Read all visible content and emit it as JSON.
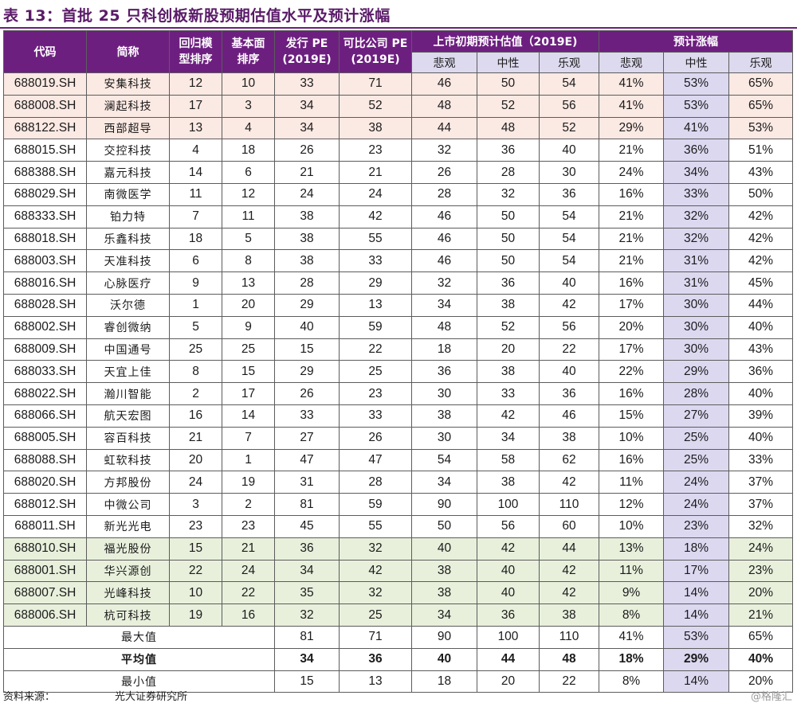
{
  "title": "表 13：首批 25 只科创板新股预期估值水平及预计涨幅",
  "table": {
    "headers": {
      "code": "代码",
      "name": "简称",
      "rank_model_l1": "回归模",
      "rank_model_l2": "型排序",
      "rank_fund_l1": "基本面",
      "rank_fund_l2": "排序",
      "ipo_pe_l1": "发行 PE",
      "ipo_pe_l2": "(2019E)",
      "comp_pe_l1": "可比公司 PE",
      "comp_pe_l2": "(2019E)",
      "val_group": "上市初期预计估值（2019E)",
      "rise_group": "预计涨幅",
      "pessimistic": "悲观",
      "neutral": "中性",
      "optimistic": "乐观"
    },
    "rows": [
      {
        "code": "688019.SH",
        "name": "安集科技",
        "rank_model": "12",
        "rank_fund": "10",
        "ipo_pe": "33",
        "comp_pe": "71",
        "v_pes": "46",
        "v_neu": "50",
        "v_opt": "54",
        "r_pes": "41%",
        "r_neu": "53%",
        "r_opt": "65%"
      },
      {
        "code": "688008.SH",
        "name": "澜起科技",
        "rank_model": "17",
        "rank_fund": "3",
        "ipo_pe": "34",
        "comp_pe": "52",
        "v_pes": "48",
        "v_neu": "52",
        "v_opt": "56",
        "r_pes": "41%",
        "r_neu": "53%",
        "r_opt": "65%"
      },
      {
        "code": "688122.SH",
        "name": "西部超导",
        "rank_model": "13",
        "rank_fund": "4",
        "ipo_pe": "34",
        "comp_pe": "38",
        "v_pes": "44",
        "v_neu": "48",
        "v_opt": "52",
        "r_pes": "29%",
        "r_neu": "41%",
        "r_opt": "53%"
      },
      {
        "code": "688015.SH",
        "name": "交控科技",
        "rank_model": "4",
        "rank_fund": "18",
        "ipo_pe": "26",
        "comp_pe": "23",
        "v_pes": "32",
        "v_neu": "36",
        "v_opt": "40",
        "r_pes": "21%",
        "r_neu": "36%",
        "r_opt": "51%"
      },
      {
        "code": "688388.SH",
        "name": "嘉元科技",
        "rank_model": "14",
        "rank_fund": "6",
        "ipo_pe": "21",
        "comp_pe": "21",
        "v_pes": "26",
        "v_neu": "28",
        "v_opt": "30",
        "r_pes": "24%",
        "r_neu": "34%",
        "r_opt": "43%"
      },
      {
        "code": "688029.SH",
        "name": "南微医学",
        "rank_model": "11",
        "rank_fund": "12",
        "ipo_pe": "24",
        "comp_pe": "24",
        "v_pes": "28",
        "v_neu": "32",
        "v_opt": "36",
        "r_pes": "16%",
        "r_neu": "33%",
        "r_opt": "50%"
      },
      {
        "code": "688333.SH",
        "name": "铂力特",
        "rank_model": "7",
        "rank_fund": "11",
        "ipo_pe": "38",
        "comp_pe": "42",
        "v_pes": "46",
        "v_neu": "50",
        "v_opt": "54",
        "r_pes": "21%",
        "r_neu": "32%",
        "r_opt": "42%"
      },
      {
        "code": "688018.SH",
        "name": "乐鑫科技",
        "rank_model": "18",
        "rank_fund": "5",
        "ipo_pe": "38",
        "comp_pe": "55",
        "v_pes": "46",
        "v_neu": "50",
        "v_opt": "54",
        "r_pes": "21%",
        "r_neu": "32%",
        "r_opt": "42%"
      },
      {
        "code": "688003.SH",
        "name": "天准科技",
        "rank_model": "6",
        "rank_fund": "8",
        "ipo_pe": "38",
        "comp_pe": "33",
        "v_pes": "46",
        "v_neu": "50",
        "v_opt": "54",
        "r_pes": "21%",
        "r_neu": "31%",
        "r_opt": "42%"
      },
      {
        "code": "688016.SH",
        "name": "心脉医疗",
        "rank_model": "9",
        "rank_fund": "13",
        "ipo_pe": "28",
        "comp_pe": "29",
        "v_pes": "32",
        "v_neu": "36",
        "v_opt": "40",
        "r_pes": "16%",
        "r_neu": "31%",
        "r_opt": "45%"
      },
      {
        "code": "688028.SH",
        "name": "沃尔德",
        "rank_model": "1",
        "rank_fund": "20",
        "ipo_pe": "29",
        "comp_pe": "13",
        "v_pes": "34",
        "v_neu": "38",
        "v_opt": "42",
        "r_pes": "17%",
        "r_neu": "30%",
        "r_opt": "44%"
      },
      {
        "code": "688002.SH",
        "name": "睿创微纳",
        "rank_model": "5",
        "rank_fund": "9",
        "ipo_pe": "40",
        "comp_pe": "59",
        "v_pes": "48",
        "v_neu": "52",
        "v_opt": "56",
        "r_pes": "20%",
        "r_neu": "30%",
        "r_opt": "40%"
      },
      {
        "code": "688009.SH",
        "name": "中国通号",
        "rank_model": "25",
        "rank_fund": "25",
        "ipo_pe": "15",
        "comp_pe": "22",
        "v_pes": "18",
        "v_neu": "20",
        "v_opt": "22",
        "r_pes": "17%",
        "r_neu": "30%",
        "r_opt": "43%"
      },
      {
        "code": "688033.SH",
        "name": "天宜上佳",
        "rank_model": "8",
        "rank_fund": "15",
        "ipo_pe": "29",
        "comp_pe": "25",
        "v_pes": "36",
        "v_neu": "38",
        "v_opt": "40",
        "r_pes": "22%",
        "r_neu": "29%",
        "r_opt": "36%"
      },
      {
        "code": "688022.SH",
        "name": "瀚川智能",
        "rank_model": "2",
        "rank_fund": "17",
        "ipo_pe": "26",
        "comp_pe": "23",
        "v_pes": "30",
        "v_neu": "33",
        "v_opt": "36",
        "r_pes": "16%",
        "r_neu": "28%",
        "r_opt": "40%"
      },
      {
        "code": "688066.SH",
        "name": "航天宏图",
        "rank_model": "16",
        "rank_fund": "14",
        "ipo_pe": "33",
        "comp_pe": "33",
        "v_pes": "38",
        "v_neu": "42",
        "v_opt": "46",
        "r_pes": "15%",
        "r_neu": "27%",
        "r_opt": "39%"
      },
      {
        "code": "688005.SH",
        "name": "容百科技",
        "rank_model": "21",
        "rank_fund": "7",
        "ipo_pe": "27",
        "comp_pe": "26",
        "v_pes": "30",
        "v_neu": "34",
        "v_opt": "38",
        "r_pes": "10%",
        "r_neu": "25%",
        "r_opt": "40%"
      },
      {
        "code": "688088.SH",
        "name": "虹软科技",
        "rank_model": "20",
        "rank_fund": "1",
        "ipo_pe": "47",
        "comp_pe": "47",
        "v_pes": "54",
        "v_neu": "58",
        "v_opt": "62",
        "r_pes": "16%",
        "r_neu": "25%",
        "r_opt": "33%"
      },
      {
        "code": "688020.SH",
        "name": "方邦股份",
        "rank_model": "24",
        "rank_fund": "19",
        "ipo_pe": "31",
        "comp_pe": "28",
        "v_pes": "34",
        "v_neu": "38",
        "v_opt": "42",
        "r_pes": "11%",
        "r_neu": "24%",
        "r_opt": "37%"
      },
      {
        "code": "688012.SH",
        "name": "中微公司",
        "rank_model": "3",
        "rank_fund": "2",
        "ipo_pe": "81",
        "comp_pe": "59",
        "v_pes": "90",
        "v_neu": "100",
        "v_opt": "110",
        "r_pes": "12%",
        "r_neu": "24%",
        "r_opt": "37%"
      },
      {
        "code": "688011.SH",
        "name": "新光光电",
        "rank_model": "23",
        "rank_fund": "23",
        "ipo_pe": "45",
        "comp_pe": "55",
        "v_pes": "50",
        "v_neu": "56",
        "v_opt": "60",
        "r_pes": "10%",
        "r_neu": "23%",
        "r_opt": "32%"
      },
      {
        "code": "688010.SH",
        "name": "福光股份",
        "rank_model": "15",
        "rank_fund": "21",
        "ipo_pe": "36",
        "comp_pe": "32",
        "v_pes": "40",
        "v_neu": "42",
        "v_opt": "44",
        "r_pes": "13%",
        "r_neu": "18%",
        "r_opt": "24%"
      },
      {
        "code": "688001.SH",
        "name": "华兴源创",
        "rank_model": "22",
        "rank_fund": "24",
        "ipo_pe": "34",
        "comp_pe": "42",
        "v_pes": "38",
        "v_neu": "40",
        "v_opt": "42",
        "r_pes": "11%",
        "r_neu": "17%",
        "r_opt": "23%"
      },
      {
        "code": "688007.SH",
        "name": "光峰科技",
        "rank_model": "10",
        "rank_fund": "22",
        "ipo_pe": "35",
        "comp_pe": "32",
        "v_pes": "38",
        "v_neu": "40",
        "v_opt": "42",
        "r_pes": "9%",
        "r_neu": "14%",
        "r_opt": "20%"
      },
      {
        "code": "688006.SH",
        "name": "杭可科技",
        "rank_model": "19",
        "rank_fund": "16",
        "ipo_pe": "32",
        "comp_pe": "25",
        "v_pes": "34",
        "v_neu": "36",
        "v_opt": "38",
        "r_pes": "8%",
        "r_neu": "14%",
        "r_opt": "21%"
      }
    ],
    "summary": [
      {
        "label": "最大值",
        "ipo_pe": "81",
        "comp_pe": "71",
        "v_pes": "90",
        "v_neu": "100",
        "v_opt": "110",
        "r_pes": "41%",
        "r_neu": "53%",
        "r_opt": "65%"
      },
      {
        "label": "平均值",
        "ipo_pe": "34",
        "comp_pe": "36",
        "v_pes": "40",
        "v_neu": "44",
        "v_opt": "48",
        "r_pes": "18%",
        "r_neu": "29%",
        "r_opt": "40%"
      },
      {
        "label": "最小值",
        "ipo_pe": "15",
        "comp_pe": "13",
        "v_pes": "18",
        "v_neu": "20",
        "v_opt": "22",
        "r_pes": "8%",
        "r_neu": "14%",
        "r_opt": "20%"
      }
    ]
  },
  "footer": {
    "source_label": "资料来源：",
    "source_name": "光大证券研究所",
    "watermark": "@格隆汇"
  },
  "colors": {
    "header_purple": "#6d1f80",
    "subheader_lavender": "#ddd9ee",
    "top_band_pink": "#fbe9e3",
    "bottom_band_green": "#e8f0dc",
    "neutral_column": "#dcd8f0"
  }
}
